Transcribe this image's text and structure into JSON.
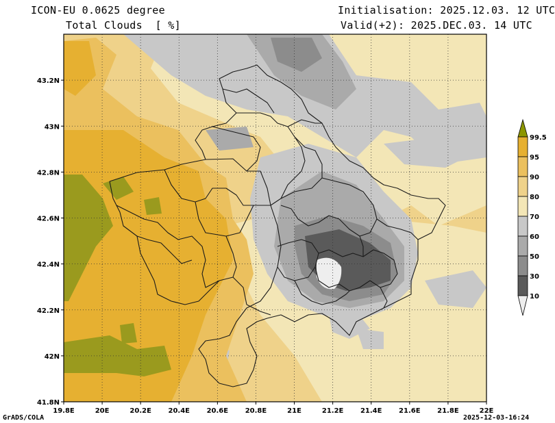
{
  "header": {
    "model": "ICON-EU 0.0625 degree",
    "field": "Total Clouds  [ %]",
    "init": "Initialisation: 2025.12.03. 12 UTC",
    "valid": "Valid(+2): 2025.DEC.03. 14 UTC"
  },
  "footer": {
    "credit": "GrADS/COLA",
    "timestamp": "2025-12-03-16:24"
  },
  "axes": {
    "x_ticks": [
      "19.8E",
      "20E",
      "20.2E",
      "20.4E",
      "20.6E",
      "20.8E",
      "21E",
      "21.2E",
      "21.4E",
      "21.6E",
      "21.8E",
      "22E"
    ],
    "y_ticks": [
      "43.2N",
      "43N",
      "42.8N",
      "42.6N",
      "42.4N",
      "42.2N",
      "42N",
      "41.8N"
    ],
    "lon_range": [
      19.8,
      22.0
    ],
    "lat_range": [
      41.8,
      43.4
    ]
  },
  "colorbar": {
    "labels": [
      "99.5",
      "95",
      "90",
      "80",
      "70",
      "60",
      "50",
      "30",
      "10"
    ],
    "colors": [
      "#8c9600",
      "#e6b031",
      "#ebc05e",
      "#efd28a",
      "#f3e6b6",
      "#c8c8c8",
      "#aaaaaa",
      "#8c8c8c",
      "#5a5a5a",
      "#eeeeee"
    ]
  },
  "palette": {
    "olive": "#9a9a1e",
    "orange": "#e6b031",
    "tan": "#ebc87a",
    "cream": "#f2e3ad",
    "lightgray": "#c8c8c8",
    "gray": "#a6a6a6",
    "darkgray": "#707070",
    "verydark": "#4a4a4a",
    "white": "#f2f2f2",
    "border": "#1a1a1a"
  }
}
